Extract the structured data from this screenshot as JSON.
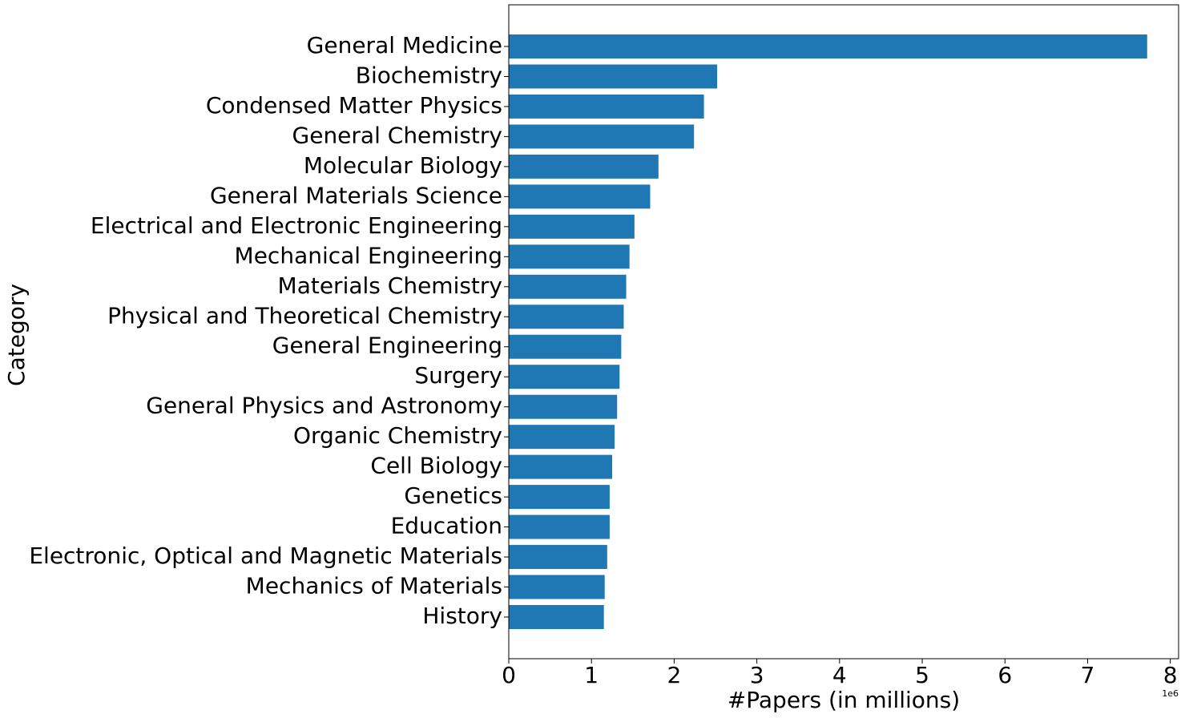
{
  "chart_data": {
    "type": "barh",
    "x_label": "#Papers (in millions)",
    "y_label": "Category",
    "offset_label": "1e6",
    "categories": [
      "General Medicine",
      "Biochemistry",
      "Condensed Matter Physics",
      "General Chemistry",
      "Molecular Biology",
      "General Materials Science",
      "Electrical and Electronic Engineering",
      "Mechanical Engineering",
      "Materials Chemistry",
      "Physical and Theoretical Chemistry",
      "General Engineering",
      "Surgery",
      "General Physics and Astronomy",
      "Organic Chemistry",
      "Cell Biology",
      "Genetics",
      "Education",
      "Electronic, Optical and Magnetic Materials",
      "Mechanics of Materials",
      "History"
    ],
    "values": [
      7.72,
      2.52,
      2.36,
      2.24,
      1.81,
      1.71,
      1.52,
      1.46,
      1.42,
      1.39,
      1.36,
      1.34,
      1.31,
      1.28,
      1.25,
      1.22,
      1.22,
      1.19,
      1.16,
      1.15
    ],
    "color": "#1f77b4",
    "xlim": [
      0,
      8.1
    ],
    "xticks": [
      0,
      1,
      2,
      3,
      4,
      5,
      6,
      7,
      8
    ]
  }
}
